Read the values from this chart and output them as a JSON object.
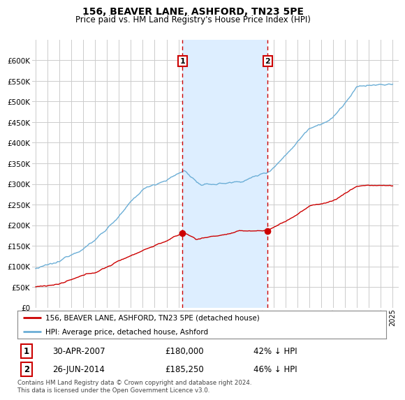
{
  "title": "156, BEAVER LANE, ASHFORD, TN23 5PE",
  "subtitle": "Price paid vs. HM Land Registry's House Price Index (HPI)",
  "ylim": [
    0,
    650000
  ],
  "yticks": [
    0,
    50000,
    100000,
    150000,
    200000,
    250000,
    300000,
    350000,
    400000,
    450000,
    500000,
    550000,
    600000
  ],
  "background_color": "#ffffff",
  "plot_bg_color": "#ffffff",
  "grid_color": "#cccccc",
  "shade_color": "#ddeeff",
  "sale1_x": 2007.33,
  "sale1_price": 180000,
  "sale2_x": 2014.5,
  "sale2_price": 185250,
  "legend_label_red": "156, BEAVER LANE, ASHFORD, TN23 5PE (detached house)",
  "legend_label_blue": "HPI: Average price, detached house, Ashford",
  "footer": "Contains HM Land Registry data © Crown copyright and database right 2024.\nThis data is licensed under the Open Government Licence v3.0.",
  "red_color": "#cc0000",
  "blue_color": "#6baed6",
  "dash_color": "#cc0000"
}
